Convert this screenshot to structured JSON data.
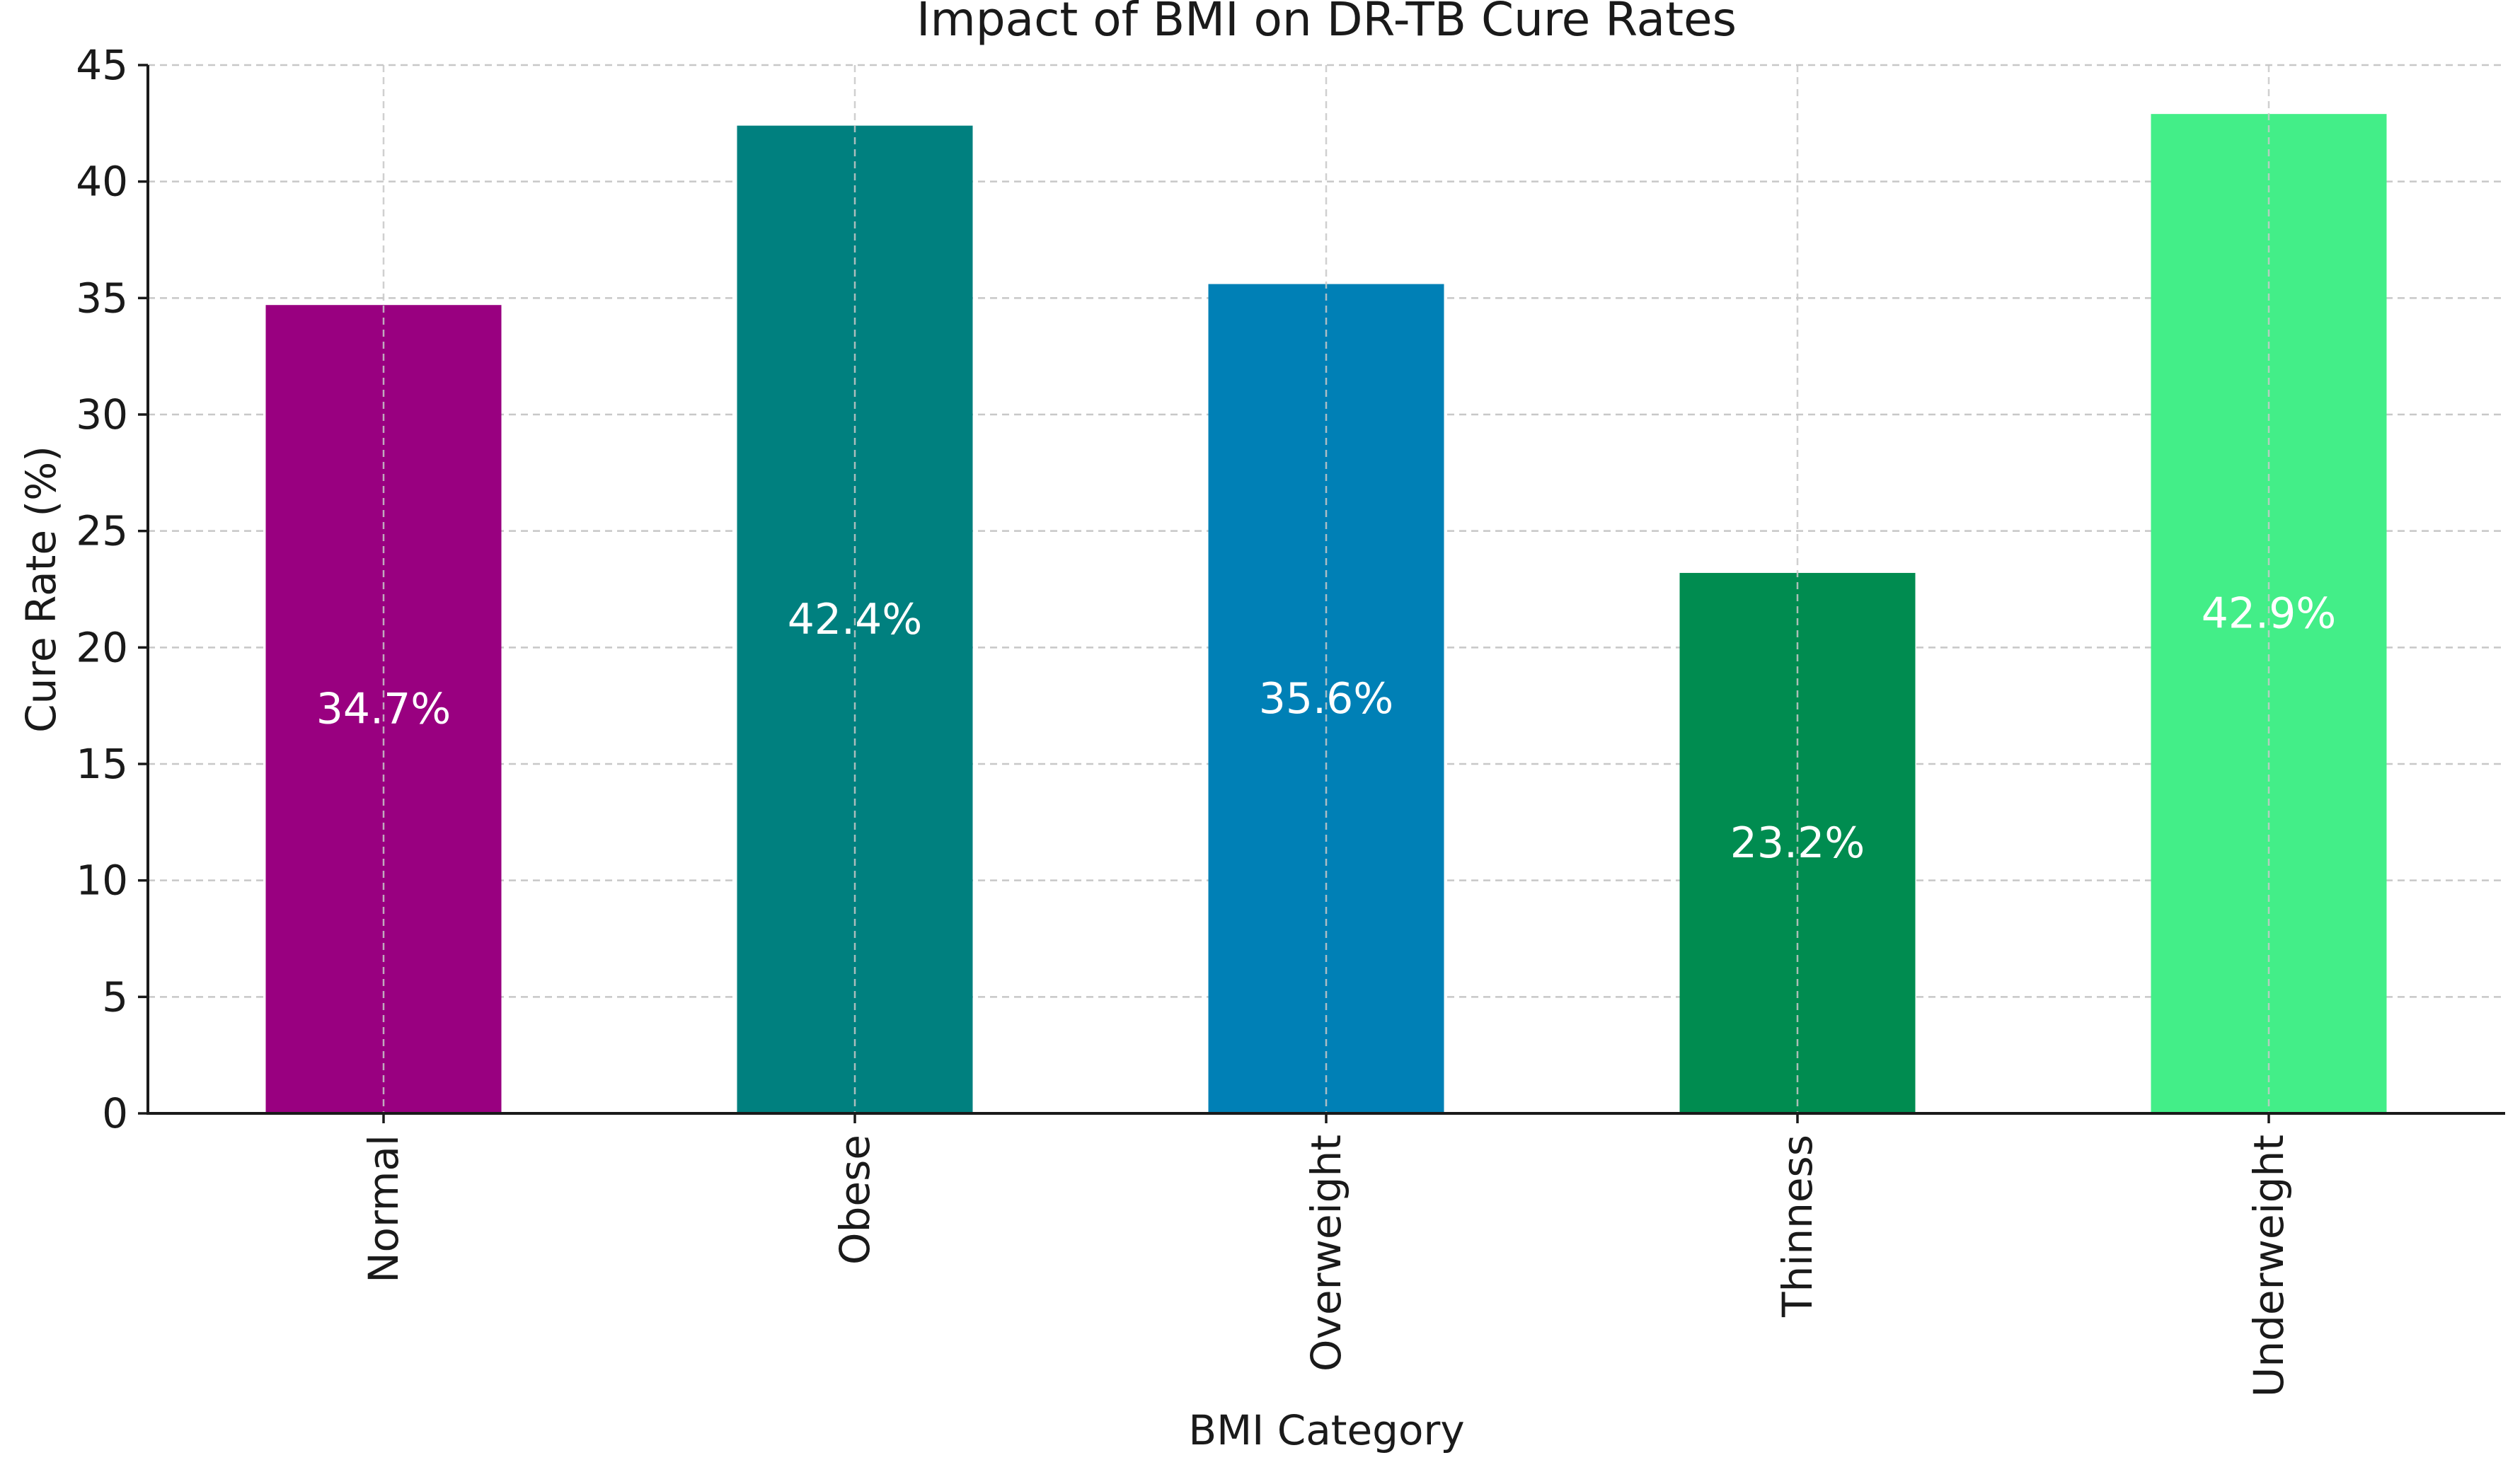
{
  "chart_data": {
    "type": "bar",
    "title": "Impact of BMI on DR-TB Cure Rates",
    "xlabel": "BMI Category",
    "ylabel": "Cure Rate (%)",
    "categories": [
      "Normal",
      "Obese",
      "Overweight",
      "Thinness",
      "Underweight"
    ],
    "values": [
      34.7,
      42.4,
      35.6,
      23.2,
      42.9
    ],
    "value_labels": [
      "34.7%",
      "42.4%",
      "35.6%",
      "23.2%",
      "42.9%"
    ],
    "colors": [
      "#990080",
      "#00807f",
      "#0080b6",
      "#008c50",
      "#43ee88"
    ],
    "ylim": [
      0,
      45
    ],
    "yticks": [
      0,
      5,
      10,
      15,
      20,
      25,
      30,
      35,
      40,
      45
    ],
    "ytick_labels": [
      "0",
      "5",
      "10",
      "15",
      "20",
      "25",
      "30",
      "35",
      "40",
      "45"
    ],
    "grid": true,
    "legend": "none",
    "x_tick_rotation": "vertical"
  }
}
